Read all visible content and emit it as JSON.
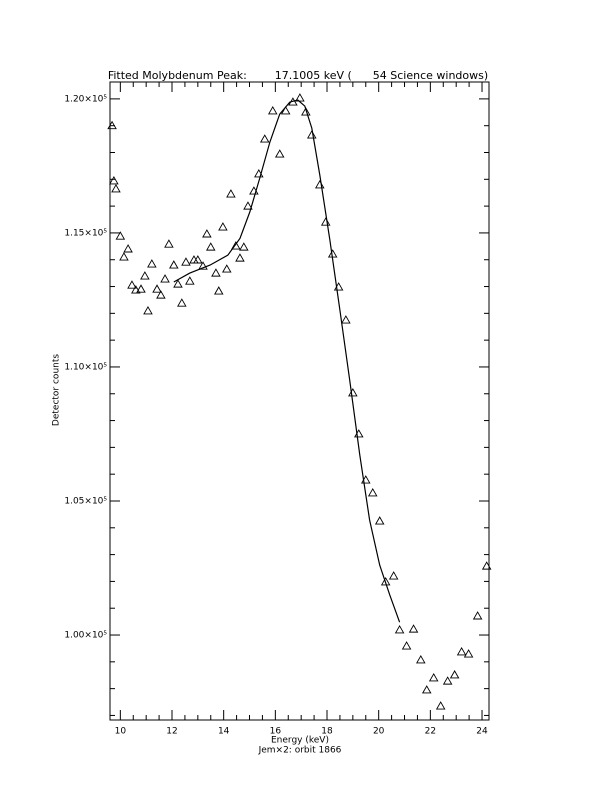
{
  "chart_data": {
    "type": "scatter",
    "title": "Fitted Molybdenum Peak:        17.1005 keV (      54 Science windows)",
    "xlabel": "Energy (keV)",
    "subtitle": "Jem×2: orbit 1866",
    "ylabel": "Detector counts",
    "xlim": [
      9.6,
      24.27
    ],
    "ylim": [
      96830,
      120630
    ],
    "xticks": [
      10,
      12,
      14,
      16,
      18,
      20,
      22,
      24
    ],
    "yticks": [
      {
        "value": 100000,
        "label": "1.00×10⁵"
      },
      {
        "value": 105000,
        "label": "1.05×10⁵"
      },
      {
        "value": 110000,
        "label": "1.10×10⁵"
      },
      {
        "value": 115000,
        "label": "1.15×10⁵"
      },
      {
        "value": 120000,
        "label": "1.20×10⁵"
      }
    ],
    "xminor": 4,
    "yminor": 5,
    "series": [
      {
        "marker": "triangle",
        "color": "#000000",
        "x": [
          9.68,
          9.75,
          9.83,
          10.0,
          10.14,
          10.3,
          10.45,
          10.6,
          10.8,
          10.95,
          11.07,
          11.22,
          11.42,
          11.57,
          11.73,
          11.88,
          12.07,
          12.23,
          12.38,
          12.54,
          12.69,
          12.85,
          13.0,
          13.2,
          13.35,
          13.5,
          13.7,
          13.81,
          13.97,
          14.12,
          14.28,
          14.47,
          14.63,
          14.78,
          14.94,
          15.17,
          15.36,
          15.59,
          15.9,
          16.17,
          16.4,
          16.68,
          16.95,
          17.18,
          17.41,
          17.72,
          17.95,
          18.22,
          18.45,
          18.73,
          19.0,
          19.23,
          19.5,
          19.77,
          20.04,
          20.27,
          20.58,
          20.81,
          21.08,
          21.35,
          21.63,
          21.86,
          22.13,
          22.4,
          22.67,
          22.94,
          23.21,
          23.48,
          23.83,
          24.18
        ],
        "values": [
          119000,
          116940,
          116640,
          114880,
          114100,
          114400,
          113050,
          112870,
          112900,
          113390,
          112090,
          113840,
          112900,
          112680,
          113280,
          114580,
          113800,
          113090,
          112380,
          113910,
          113200,
          113990,
          113990,
          113760,
          114960,
          114470,
          113500,
          112830,
          115220,
          113650,
          116450,
          114510,
          114060,
          114470,
          116000,
          116560,
          117200,
          118500,
          119550,
          117940,
          119550,
          119880,
          120030,
          119510,
          118650,
          116790,
          115400,
          114210,
          112980,
          111750,
          109030,
          107500,
          105780,
          105300,
          104250,
          101980,
          102200,
          100190,
          99590,
          100220,
          99070,
          97950,
          98400,
          97350,
          98280,
          98510,
          99370,
          99290,
          100710,
          102570
        ]
      },
      {
        "marker": "line",
        "color": "#000000",
        "x": [
          12.07,
          12.69,
          13.47,
          14.16,
          14.63,
          15.01,
          15.4,
          15.79,
          16.17,
          16.56,
          16.87,
          17.14,
          17.41,
          17.72,
          18.11,
          18.5,
          18.88,
          19.27,
          19.65,
          20.04,
          20.43,
          20.81
        ],
        "values": [
          113170,
          113500,
          113800,
          114170,
          114800,
          115780,
          117050,
          118390,
          119430,
          119880,
          119960,
          119730,
          118910,
          117160,
          114730,
          112120,
          109510,
          106710,
          104290,
          102610,
          101490,
          100480
        ]
      }
    ]
  }
}
